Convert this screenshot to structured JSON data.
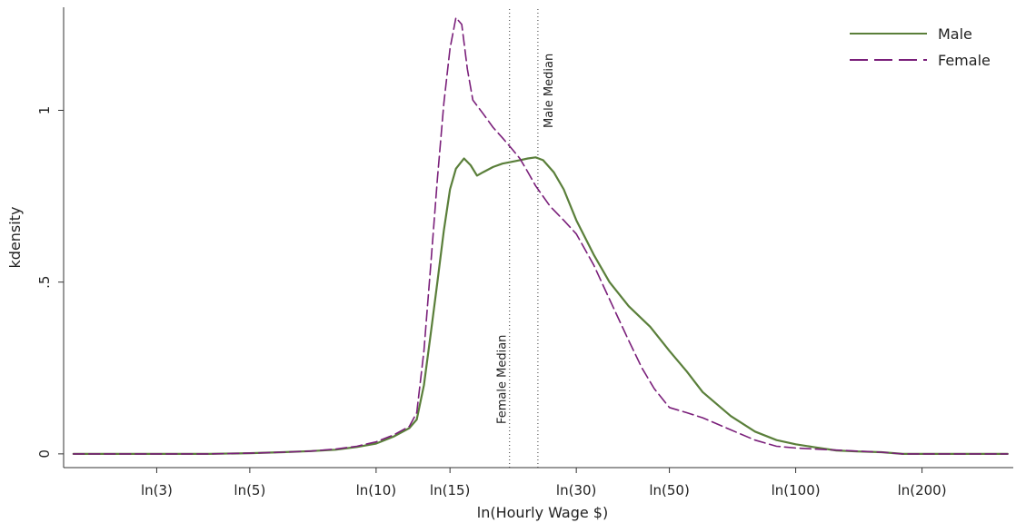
{
  "chart_data": {
    "type": "line",
    "xlabel": "ln(Hourly Wage $)",
    "ylabel": "kdensity",
    "xscale": "log",
    "xlim": [
      1.8,
      330
    ],
    "ylim": [
      -0.04,
      1.3
    ],
    "grid": false,
    "legend_position": "top-right",
    "x_ticks": [
      {
        "value": 3,
        "label": "ln(3)"
      },
      {
        "value": 5,
        "label": "ln(5)"
      },
      {
        "value": 10,
        "label": "ln(10)"
      },
      {
        "value": 15,
        "label": "ln(15)"
      },
      {
        "value": 30,
        "label": "ln(30)"
      },
      {
        "value": 50,
        "label": "ln(50)"
      },
      {
        "value": 100,
        "label": "ln(100)"
      },
      {
        "value": 200,
        "label": "ln(200)"
      }
    ],
    "y_ticks": [
      {
        "value": 0,
        "label": "0"
      },
      {
        "value": 0.5,
        "label": ".5"
      },
      {
        "value": 1,
        "label": "1"
      }
    ],
    "series": [
      {
        "name": "Male",
        "color": "#5a7f3a",
        "dash": "solid",
        "points": [
          [
            1.9,
            0.0
          ],
          [
            2.5,
            0.0
          ],
          [
            3.0,
            0.0
          ],
          [
            4.0,
            0.0
          ],
          [
            5.0,
            0.002
          ],
          [
            6.0,
            0.005
          ],
          [
            7.0,
            0.008
          ],
          [
            8.0,
            0.012
          ],
          [
            9.0,
            0.02
          ],
          [
            10.0,
            0.03
          ],
          [
            11.0,
            0.05
          ],
          [
            12.0,
            0.075
          ],
          [
            12.5,
            0.1
          ],
          [
            13.0,
            0.2
          ],
          [
            13.5,
            0.35
          ],
          [
            14.0,
            0.5
          ],
          [
            14.5,
            0.65
          ],
          [
            15.0,
            0.77
          ],
          [
            15.5,
            0.83
          ],
          [
            16.2,
            0.86
          ],
          [
            16.8,
            0.84
          ],
          [
            17.4,
            0.81
          ],
          [
            18.0,
            0.82
          ],
          [
            19.0,
            0.835
          ],
          [
            20.0,
            0.845
          ],
          [
            21.0,
            0.85
          ],
          [
            22.0,
            0.855
          ],
          [
            23.0,
            0.86
          ],
          [
            24.0,
            0.863
          ],
          [
            25.0,
            0.855
          ],
          [
            26.5,
            0.82
          ],
          [
            28.0,
            0.77
          ],
          [
            30.0,
            0.68
          ],
          [
            33.0,
            0.58
          ],
          [
            36.0,
            0.5
          ],
          [
            40.0,
            0.43
          ],
          [
            45.0,
            0.37
          ],
          [
            50.0,
            0.3
          ],
          [
            55.0,
            0.24
          ],
          [
            60.0,
            0.18
          ],
          [
            70.0,
            0.11
          ],
          [
            80.0,
            0.065
          ],
          [
            90.0,
            0.04
          ],
          [
            100.0,
            0.028
          ],
          [
            110.0,
            0.02
          ],
          [
            125.0,
            0.01
          ],
          [
            140.0,
            0.007
          ],
          [
            160.0,
            0.005
          ],
          [
            180.0,
            0.0
          ],
          [
            200.0,
            0.0
          ],
          [
            260.0,
            0.0
          ],
          [
            320.0,
            0.0
          ]
        ]
      },
      {
        "name": "Female",
        "color": "#7a1f7a",
        "dash": "dashed",
        "points": [
          [
            1.9,
            0.0
          ],
          [
            2.5,
            0.0
          ],
          [
            3.0,
            0.0
          ],
          [
            4.0,
            0.0
          ],
          [
            5.0,
            0.002
          ],
          [
            6.0,
            0.005
          ],
          [
            7.0,
            0.008
          ],
          [
            8.0,
            0.014
          ],
          [
            9.0,
            0.022
          ],
          [
            10.0,
            0.035
          ],
          [
            11.0,
            0.055
          ],
          [
            12.0,
            0.08
          ],
          [
            12.5,
            0.12
          ],
          [
            13.0,
            0.3
          ],
          [
            13.5,
            0.55
          ],
          [
            14.0,
            0.8
          ],
          [
            14.5,
            1.02
          ],
          [
            15.0,
            1.18
          ],
          [
            15.5,
            1.27
          ],
          [
            16.0,
            1.25
          ],
          [
            16.5,
            1.12
          ],
          [
            17.0,
            1.03
          ],
          [
            18.0,
            0.99
          ],
          [
            19.0,
            0.95
          ],
          [
            20.0,
            0.92
          ],
          [
            21.0,
            0.89
          ],
          [
            22.0,
            0.86
          ],
          [
            23.0,
            0.82
          ],
          [
            24.0,
            0.78
          ],
          [
            26.0,
            0.72
          ],
          [
            28.0,
            0.68
          ],
          [
            30.0,
            0.64
          ],
          [
            33.0,
            0.55
          ],
          [
            36.0,
            0.45
          ],
          [
            40.0,
            0.33
          ],
          [
            43.0,
            0.25
          ],
          [
            46.0,
            0.19
          ],
          [
            50.0,
            0.135
          ],
          [
            55.0,
            0.12
          ],
          [
            60.0,
            0.105
          ],
          [
            70.0,
            0.07
          ],
          [
            80.0,
            0.04
          ],
          [
            90.0,
            0.022
          ],
          [
            100.0,
            0.017
          ],
          [
            120.0,
            0.012
          ],
          [
            140.0,
            0.008
          ],
          [
            160.0,
            0.005
          ],
          [
            180.0,
            0.0
          ],
          [
            200.0,
            0.0
          ],
          [
            260.0,
            0.0
          ],
          [
            320.0,
            0.0
          ]
        ]
      }
    ],
    "reference_lines": [
      {
        "label": "Female Median",
        "x": 20.8
      },
      {
        "label": "Male Median",
        "x": 24.3
      }
    ]
  }
}
